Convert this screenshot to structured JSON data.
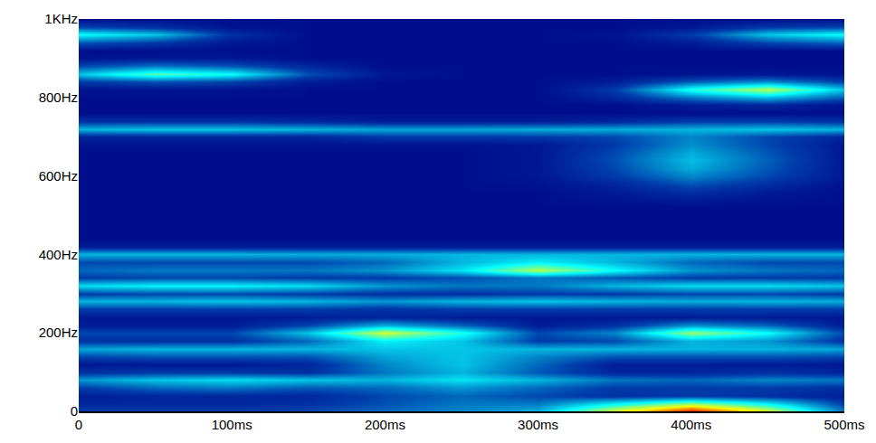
{
  "chart_data": {
    "type": "heatmap",
    "x": [
      0,
      50,
      100,
      150,
      200,
      250,
      300,
      350,
      400,
      450,
      500
    ],
    "y": [
      0,
      20,
      40,
      60,
      80,
      100,
      120,
      140,
      160,
      180,
      200,
      220,
      240,
      260,
      280,
      300,
      320,
      340,
      360,
      380,
      400,
      420,
      440,
      460,
      480,
      500,
      520,
      540,
      560,
      580,
      600,
      620,
      640,
      660,
      680,
      700,
      720,
      740,
      760,
      780,
      800,
      820,
      840,
      860,
      880,
      900,
      920,
      940,
      960,
      980,
      1000
    ],
    "z": [
      [
        0.12,
        0.12,
        0.12,
        0.14,
        0.18,
        0.22,
        0.28,
        0.6,
        0.88,
        0.6,
        0.2
      ],
      [
        0.08,
        0.08,
        0.08,
        0.1,
        0.15,
        0.2,
        0.2,
        0.35,
        0.5,
        0.35,
        0.12
      ],
      [
        0.06,
        0.08,
        0.08,
        0.08,
        0.14,
        0.18,
        0.14,
        0.1,
        0.12,
        0.1,
        0.06
      ],
      [
        0.12,
        0.18,
        0.2,
        0.16,
        0.18,
        0.24,
        0.18,
        0.12,
        0.12,
        0.12,
        0.1
      ],
      [
        0.24,
        0.3,
        0.33,
        0.3,
        0.28,
        0.34,
        0.28,
        0.2,
        0.18,
        0.22,
        0.2
      ],
      [
        0.1,
        0.12,
        0.12,
        0.1,
        0.2,
        0.28,
        0.16,
        0.08,
        0.08,
        0.1,
        0.08
      ],
      [
        0.05,
        0.05,
        0.05,
        0.08,
        0.22,
        0.3,
        0.18,
        0.06,
        0.06,
        0.06,
        0.05
      ],
      [
        0.14,
        0.16,
        0.16,
        0.16,
        0.26,
        0.3,
        0.22,
        0.16,
        0.16,
        0.16,
        0.14
      ],
      [
        0.26,
        0.28,
        0.28,
        0.28,
        0.3,
        0.3,
        0.28,
        0.28,
        0.28,
        0.28,
        0.26
      ],
      [
        0.1,
        0.1,
        0.1,
        0.18,
        0.36,
        0.3,
        0.12,
        0.14,
        0.28,
        0.24,
        0.1
      ],
      [
        0.14,
        0.14,
        0.14,
        0.3,
        0.58,
        0.4,
        0.14,
        0.22,
        0.52,
        0.38,
        0.14
      ],
      [
        0.06,
        0.06,
        0.06,
        0.14,
        0.28,
        0.18,
        0.06,
        0.1,
        0.24,
        0.18,
        0.06
      ],
      [
        0.05,
        0.05,
        0.05,
        0.06,
        0.08,
        0.06,
        0.05,
        0.05,
        0.06,
        0.06,
        0.05
      ],
      [
        0.12,
        0.12,
        0.12,
        0.12,
        0.1,
        0.12,
        0.12,
        0.12,
        0.12,
        0.12,
        0.12
      ],
      [
        0.28,
        0.28,
        0.3,
        0.28,
        0.24,
        0.28,
        0.3,
        0.28,
        0.27,
        0.28,
        0.27
      ],
      [
        0.12,
        0.14,
        0.14,
        0.12,
        0.1,
        0.1,
        0.12,
        0.12,
        0.14,
        0.14,
        0.12
      ],
      [
        0.33,
        0.36,
        0.36,
        0.33,
        0.24,
        0.2,
        0.2,
        0.28,
        0.33,
        0.33,
        0.3
      ],
      [
        0.12,
        0.14,
        0.14,
        0.12,
        0.12,
        0.15,
        0.2,
        0.16,
        0.12,
        0.12,
        0.12
      ],
      [
        0.18,
        0.2,
        0.2,
        0.2,
        0.24,
        0.34,
        0.55,
        0.38,
        0.24,
        0.2,
        0.18
      ],
      [
        0.14,
        0.14,
        0.14,
        0.14,
        0.18,
        0.28,
        0.36,
        0.28,
        0.18,
        0.14,
        0.14
      ],
      [
        0.28,
        0.28,
        0.28,
        0.27,
        0.27,
        0.28,
        0.28,
        0.28,
        0.28,
        0.28,
        0.28
      ],
      [
        0.06,
        0.06,
        0.06,
        0.06,
        0.06,
        0.06,
        0.06,
        0.06,
        0.06,
        0.06,
        0.06
      ],
      [
        0.03,
        0.03,
        0.03,
        0.03,
        0.03,
        0.03,
        0.03,
        0.03,
        0.03,
        0.03,
        0.03
      ],
      [
        0.03,
        0.03,
        0.03,
        0.03,
        0.03,
        0.03,
        0.03,
        0.03,
        0.03,
        0.03,
        0.03
      ],
      [
        0.03,
        0.03,
        0.03,
        0.03,
        0.03,
        0.03,
        0.03,
        0.03,
        0.03,
        0.03,
        0.03
      ],
      [
        0.03,
        0.03,
        0.03,
        0.03,
        0.03,
        0.03,
        0.03,
        0.03,
        0.03,
        0.03,
        0.03
      ],
      [
        0.03,
        0.03,
        0.03,
        0.03,
        0.03,
        0.03,
        0.03,
        0.03,
        0.03,
        0.03,
        0.03
      ],
      [
        0.03,
        0.03,
        0.03,
        0.03,
        0.03,
        0.03,
        0.03,
        0.04,
        0.06,
        0.04,
        0.03
      ],
      [
        0.03,
        0.03,
        0.03,
        0.03,
        0.03,
        0.03,
        0.03,
        0.06,
        0.1,
        0.06,
        0.03
      ],
      [
        0.03,
        0.03,
        0.03,
        0.03,
        0.03,
        0.03,
        0.04,
        0.08,
        0.16,
        0.1,
        0.04
      ],
      [
        0.03,
        0.03,
        0.03,
        0.03,
        0.03,
        0.03,
        0.05,
        0.12,
        0.22,
        0.14,
        0.05
      ],
      [
        0.03,
        0.03,
        0.03,
        0.03,
        0.03,
        0.03,
        0.05,
        0.14,
        0.27,
        0.16,
        0.05
      ],
      [
        0.03,
        0.03,
        0.03,
        0.03,
        0.03,
        0.03,
        0.05,
        0.15,
        0.29,
        0.17,
        0.05
      ],
      [
        0.03,
        0.03,
        0.03,
        0.03,
        0.03,
        0.03,
        0.05,
        0.14,
        0.27,
        0.16,
        0.05
      ],
      [
        0.04,
        0.04,
        0.04,
        0.04,
        0.04,
        0.04,
        0.05,
        0.12,
        0.23,
        0.14,
        0.05
      ],
      [
        0.08,
        0.08,
        0.08,
        0.08,
        0.12,
        0.12,
        0.12,
        0.14,
        0.22,
        0.14,
        0.08
      ],
      [
        0.28,
        0.3,
        0.3,
        0.28,
        0.26,
        0.26,
        0.27,
        0.27,
        0.28,
        0.3,
        0.28
      ],
      [
        0.1,
        0.1,
        0.1,
        0.08,
        0.06,
        0.06,
        0.06,
        0.08,
        0.12,
        0.12,
        0.1
      ],
      [
        0.03,
        0.03,
        0.03,
        0.03,
        0.03,
        0.03,
        0.03,
        0.03,
        0.03,
        0.03,
        0.03
      ],
      [
        0.03,
        0.03,
        0.03,
        0.03,
        0.03,
        0.03,
        0.03,
        0.03,
        0.06,
        0.08,
        0.04
      ],
      [
        0.03,
        0.03,
        0.03,
        0.03,
        0.03,
        0.03,
        0.03,
        0.08,
        0.2,
        0.28,
        0.16
      ],
      [
        0.04,
        0.04,
        0.04,
        0.03,
        0.03,
        0.03,
        0.03,
        0.12,
        0.4,
        0.55,
        0.3
      ],
      [
        0.12,
        0.16,
        0.14,
        0.06,
        0.03,
        0.03,
        0.03,
        0.06,
        0.16,
        0.22,
        0.12
      ],
      [
        0.3,
        0.45,
        0.38,
        0.15,
        0.05,
        0.03,
        0.03,
        0.03,
        0.04,
        0.05,
        0.04
      ],
      [
        0.14,
        0.2,
        0.16,
        0.08,
        0.03,
        0.03,
        0.03,
        0.03,
        0.03,
        0.03,
        0.03
      ],
      [
        0.04,
        0.05,
        0.05,
        0.03,
        0.03,
        0.03,
        0.03,
        0.03,
        0.03,
        0.03,
        0.03
      ],
      [
        0.03,
        0.03,
        0.03,
        0.03,
        0.03,
        0.03,
        0.03,
        0.03,
        0.03,
        0.03,
        0.03
      ],
      [
        0.16,
        0.12,
        0.05,
        0.03,
        0.03,
        0.03,
        0.03,
        0.03,
        0.06,
        0.14,
        0.18
      ],
      [
        0.38,
        0.3,
        0.1,
        0.03,
        0.03,
        0.03,
        0.03,
        0.04,
        0.12,
        0.3,
        0.38
      ],
      [
        0.14,
        0.1,
        0.04,
        0.03,
        0.03,
        0.03,
        0.03,
        0.03,
        0.05,
        0.12,
        0.14
      ],
      [
        0.03,
        0.03,
        0.03,
        0.03,
        0.03,
        0.03,
        0.03,
        0.03,
        0.03,
        0.03,
        0.03
      ]
    ],
    "z_range": [
      0,
      1
    ],
    "xlim": [
      0,
      500
    ],
    "ylim": [
      0,
      1000
    ],
    "xticks": [
      0,
      {
        "value": 100,
        "label": "100ms"
      },
      {
        "value": 200,
        "label": "200ms"
      },
      {
        "value": 300,
        "label": "300ms"
      },
      {
        "value": 400,
        "label": "400ms"
      },
      {
        "value": 500,
        "label": "500ms"
      }
    ],
    "yticks": [
      0,
      {
        "value": 200,
        "label": "200Hz"
      },
      {
        "value": 400,
        "label": "400Hz"
      },
      {
        "value": 600,
        "label": "600Hz"
      },
      {
        "value": 800,
        "label": "800Hz"
      },
      {
        "value": 1000,
        "label": "1KHz"
      }
    ],
    "grid": false
  }
}
